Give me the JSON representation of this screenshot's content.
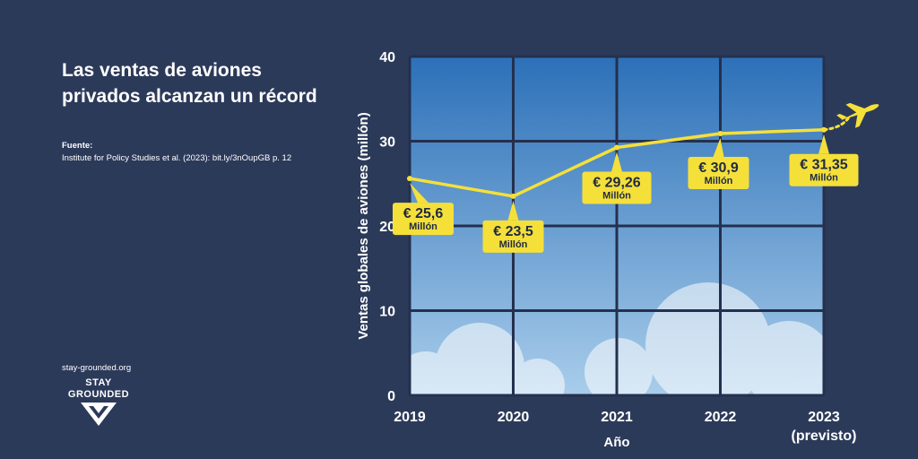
{
  "title": "Las ventas de aviones privados alcanzan un récord",
  "source": {
    "label": "Fuente:",
    "text": "Institute for Policy Studies et al. (2023): bit.ly/3nOupGB p. 12"
  },
  "footer": {
    "url": "stay-grounded.org",
    "logo_line1": "STAY",
    "logo_line2": "GROUNDED"
  },
  "colors": {
    "background": "#2c3a5a",
    "line": "#f5e03a",
    "grid": "#24304d",
    "sky_top": "#2c70b8",
    "sky_bottom": "#a9cdeb"
  },
  "chart_data": {
    "type": "line",
    "xlabel": "Año",
    "ylabel": "Ventas globales de aviones (millón)",
    "ylim": [
      0,
      40
    ],
    "yticks": [
      "0",
      "10",
      "20",
      "30",
      "40"
    ],
    "categories": [
      "2019",
      "2020",
      "2021",
      "2022",
      "2023"
    ],
    "category_sublabels": [
      "",
      "",
      "",
      "",
      "(previsto)"
    ],
    "values": [
      25.6,
      23.5,
      29.26,
      30.9,
      31.35
    ],
    "data_labels": [
      {
        "value": "€ 25,6",
        "unit": "Millón"
      },
      {
        "value": "€ 23,5",
        "unit": "Millón"
      },
      {
        "value": "€ 29,26",
        "unit": "Millón"
      },
      {
        "value": "€ 30,9",
        "unit": "Millón"
      },
      {
        "value": "€ 31,35",
        "unit": "Millón"
      }
    ],
    "grid": true
  }
}
